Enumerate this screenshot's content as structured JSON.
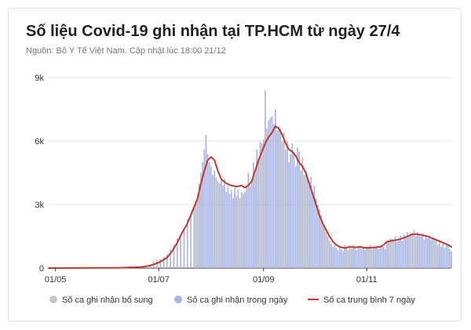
{
  "header": {
    "title": "Số liệu Covid-19 ghi nhận tại TP.HCM từ ngày 27/4",
    "subtitle": "Nguồn: Bộ Y Tế Việt Nam. Cập nhật lúc 18:00 21/12"
  },
  "colors": {
    "bars": "#a9b3dc",
    "bars_extra": "#c8c8c8",
    "line": "#c0392b",
    "grid": "#e6e6e6",
    "axis": "#333333"
  },
  "chart_data": {
    "type": "bar",
    "x_range": [
      "27/04",
      "21/12"
    ],
    "ylim": [
      0,
      9000
    ],
    "yticks": [
      {
        "value": 0,
        "label": "0"
      },
      {
        "value": 3000,
        "label": "3k"
      },
      {
        "value": 6000,
        "label": "6k"
      },
      {
        "value": 9000,
        "label": "9k"
      }
    ],
    "xticks": [
      {
        "day": 4,
        "label": "01/05"
      },
      {
        "day": 65,
        "label": "01/07"
      },
      {
        "day": 127,
        "label": "01/09"
      },
      {
        "day": 188,
        "label": "01/11"
      }
    ],
    "grid": true,
    "legend_position": "bottom",
    "series": [
      {
        "name": "Số ca ghi nhận bổ sung",
        "color": "#c8c8c8",
        "points": []
      },
      {
        "name": "Số ca ghi nhận trong ngày",
        "color": "#a9b3dc",
        "points": [
          [
            0,
            0
          ],
          [
            45,
            30
          ],
          [
            50,
            60
          ],
          [
            55,
            80
          ],
          [
            58,
            120
          ],
          [
            60,
            180
          ],
          [
            62,
            320
          ],
          [
            64,
            380
          ],
          [
            66,
            420
          ],
          [
            68,
            520
          ],
          [
            70,
            650
          ],
          [
            72,
            900
          ],
          [
            74,
            1100
          ],
          [
            76,
            1400
          ],
          [
            78,
            1600
          ],
          [
            80,
            1900
          ],
          [
            82,
            2300
          ],
          [
            84,
            2500
          ],
          [
            86,
            2900
          ],
          [
            87,
            3100
          ],
          [
            88,
            3500
          ],
          [
            89,
            4000
          ],
          [
            90,
            4500
          ],
          [
            91,
            5000
          ],
          [
            92,
            5600
          ],
          [
            93,
            6300
          ],
          [
            94,
            5400
          ],
          [
            95,
            5000
          ],
          [
            96,
            4800
          ],
          [
            97,
            4400
          ],
          [
            98,
            4600
          ],
          [
            99,
            4300
          ],
          [
            100,
            4100
          ],
          [
            101,
            4000
          ],
          [
            102,
            4200
          ],
          [
            103,
            3900
          ],
          [
            104,
            4200
          ],
          [
            105,
            3600
          ],
          [
            106,
            3900
          ],
          [
            107,
            3500
          ],
          [
            108,
            3700
          ],
          [
            109,
            3300
          ],
          [
            110,
            3800
          ],
          [
            111,
            3400
          ],
          [
            112,
            3700
          ],
          [
            113,
            3300
          ],
          [
            114,
            3600
          ],
          [
            115,
            3500
          ],
          [
            116,
            3600
          ],
          [
            117,
            3800
          ],
          [
            118,
            4500
          ],
          [
            119,
            3900
          ],
          [
            120,
            4200
          ],
          [
            121,
            5000
          ],
          [
            122,
            4400
          ],
          [
            123,
            5600
          ],
          [
            124,
            5200
          ],
          [
            125,
            6000
          ],
          [
            126,
            5900
          ],
          [
            127,
            6100
          ],
          [
            128,
            8400
          ],
          [
            129,
            6600
          ],
          [
            130,
            7000
          ],
          [
            131,
            7100
          ],
          [
            132,
            7200
          ],
          [
            133,
            6800
          ],
          [
            134,
            7500
          ],
          [
            135,
            6500
          ],
          [
            136,
            6700
          ],
          [
            137,
            6600
          ],
          [
            138,
            6000
          ],
          [
            139,
            6400
          ],
          [
            140,
            5600
          ],
          [
            141,
            6000
          ],
          [
            142,
            5000
          ],
          [
            143,
            5400
          ],
          [
            144,
            5900
          ],
          [
            145,
            5500
          ],
          [
            146,
            4800
          ],
          [
            147,
            5700
          ],
          [
            148,
            5500
          ],
          [
            149,
            4600
          ],
          [
            150,
            5200
          ],
          [
            151,
            4400
          ],
          [
            152,
            4600
          ],
          [
            153,
            4200
          ],
          [
            154,
            3900
          ],
          [
            155,
            4300
          ],
          [
            156,
            3600
          ],
          [
            157,
            3900
          ],
          [
            158,
            3300
          ],
          [
            159,
            3000
          ],
          [
            160,
            2800
          ],
          [
            161,
            2500
          ],
          [
            162,
            2200
          ],
          [
            163,
            1900
          ],
          [
            164,
            1700
          ],
          [
            165,
            1500
          ],
          [
            166,
            1300
          ],
          [
            167,
            1150
          ],
          [
            168,
            1000
          ],
          [
            169,
            1100
          ],
          [
            170,
            950
          ],
          [
            171,
            850
          ],
          [
            172,
            1000
          ],
          [
            173,
            900
          ],
          [
            174,
            800
          ],
          [
            175,
            1100
          ],
          [
            176,
            950
          ],
          [
            177,
            850
          ],
          [
            178,
            1050
          ],
          [
            179,
            900
          ],
          [
            180,
            1100
          ],
          [
            181,
            1000
          ],
          [
            182,
            850
          ],
          [
            183,
            1050
          ],
          [
            184,
            950
          ],
          [
            185,
            900
          ],
          [
            186,
            1000
          ],
          [
            187,
            850
          ],
          [
            188,
            950
          ],
          [
            189,
            1000
          ],
          [
            190,
            1100
          ],
          [
            191,
            900
          ],
          [
            192,
            1000
          ],
          [
            193,
            950
          ],
          [
            194,
            1000
          ],
          [
            195,
            900
          ],
          [
            196,
            950
          ],
          [
            197,
            1100
          ],
          [
            198,
            1000
          ],
          [
            199,
            900
          ],
          [
            200,
            1300
          ],
          [
            201,
            1250
          ],
          [
            202,
            1400
          ],
          [
            203,
            1350
          ],
          [
            204,
            1300
          ],
          [
            205,
            1500
          ],
          [
            206,
            1250
          ],
          [
            207,
            1400
          ],
          [
            208,
            1550
          ],
          [
            209,
            1300
          ],
          [
            210,
            1600
          ],
          [
            211,
            1450
          ],
          [
            212,
            1700
          ],
          [
            213,
            1500
          ],
          [
            214,
            1650
          ],
          [
            215,
            1550
          ],
          [
            216,
            1800
          ],
          [
            217,
            1500
          ],
          [
            218,
            1700
          ],
          [
            219,
            1600
          ],
          [
            220,
            1500
          ],
          [
            221,
            1650
          ],
          [
            222,
            1350
          ],
          [
            223,
            1500
          ],
          [
            224,
            1400
          ],
          [
            225,
            1550
          ],
          [
            226,
            1350
          ],
          [
            227,
            1450
          ],
          [
            228,
            1300
          ],
          [
            229,
            1350
          ],
          [
            230,
            1100
          ],
          [
            231,
            1250
          ],
          [
            232,
            1000
          ],
          [
            233,
            1150
          ],
          [
            234,
            950
          ],
          [
            235,
            1100
          ],
          [
            236,
            1050
          ],
          [
            237,
            900
          ],
          [
            238,
            800
          ]
        ]
      },
      {
        "name": "Số ca trung bình 7 ngày",
        "color": "#c0392b",
        "points": [
          [
            0,
            0
          ],
          [
            40,
            10
          ],
          [
            55,
            50
          ],
          [
            60,
            120
          ],
          [
            63,
            200
          ],
          [
            66,
            300
          ],
          [
            70,
            500
          ],
          [
            73,
            800
          ],
          [
            76,
            1200
          ],
          [
            79,
            1700
          ],
          [
            82,
            2100
          ],
          [
            85,
            2700
          ],
          [
            88,
            3300
          ],
          [
            90,
            4000
          ],
          [
            92,
            4600
          ],
          [
            94,
            5100
          ],
          [
            96,
            5250
          ],
          [
            98,
            5100
          ],
          [
            100,
            4600
          ],
          [
            102,
            4200
          ],
          [
            105,
            4000
          ],
          [
            108,
            3900
          ],
          [
            111,
            3850
          ],
          [
            114,
            3900
          ],
          [
            116,
            3800
          ],
          [
            118,
            3900
          ],
          [
            120,
            4100
          ],
          [
            122,
            4600
          ],
          [
            124,
            5100
          ],
          [
            126,
            5500
          ],
          [
            128,
            5900
          ],
          [
            130,
            6200
          ],
          [
            132,
            6400
          ],
          [
            134,
            6700
          ],
          [
            136,
            6600
          ],
          [
            138,
            6300
          ],
          [
            140,
            5900
          ],
          [
            142,
            5600
          ],
          [
            144,
            5500
          ],
          [
            146,
            5300
          ],
          [
            148,
            5000
          ],
          [
            150,
            4800
          ],
          [
            152,
            4500
          ],
          [
            154,
            4000
          ],
          [
            156,
            3500
          ],
          [
            158,
            3000
          ],
          [
            160,
            2500
          ],
          [
            162,
            2100
          ],
          [
            164,
            1800
          ],
          [
            166,
            1500
          ],
          [
            168,
            1250
          ],
          [
            170,
            1100
          ],
          [
            172,
            1000
          ],
          [
            175,
            950
          ],
          [
            178,
            1000
          ],
          [
            181,
            980
          ],
          [
            184,
            1000
          ],
          [
            187,
            960
          ],
          [
            190,
            960
          ],
          [
            193,
            980
          ],
          [
            196,
            1000
          ],
          [
            198,
            1100
          ],
          [
            200,
            1250
          ],
          [
            203,
            1300
          ],
          [
            206,
            1330
          ],
          [
            209,
            1400
          ],
          [
            212,
            1500
          ],
          [
            215,
            1600
          ],
          [
            218,
            1600
          ],
          [
            221,
            1550
          ],
          [
            224,
            1500
          ],
          [
            227,
            1400
          ],
          [
            230,
            1300
          ],
          [
            233,
            1200
          ],
          [
            236,
            1100
          ],
          [
            238,
            1000
          ]
        ]
      }
    ]
  }
}
